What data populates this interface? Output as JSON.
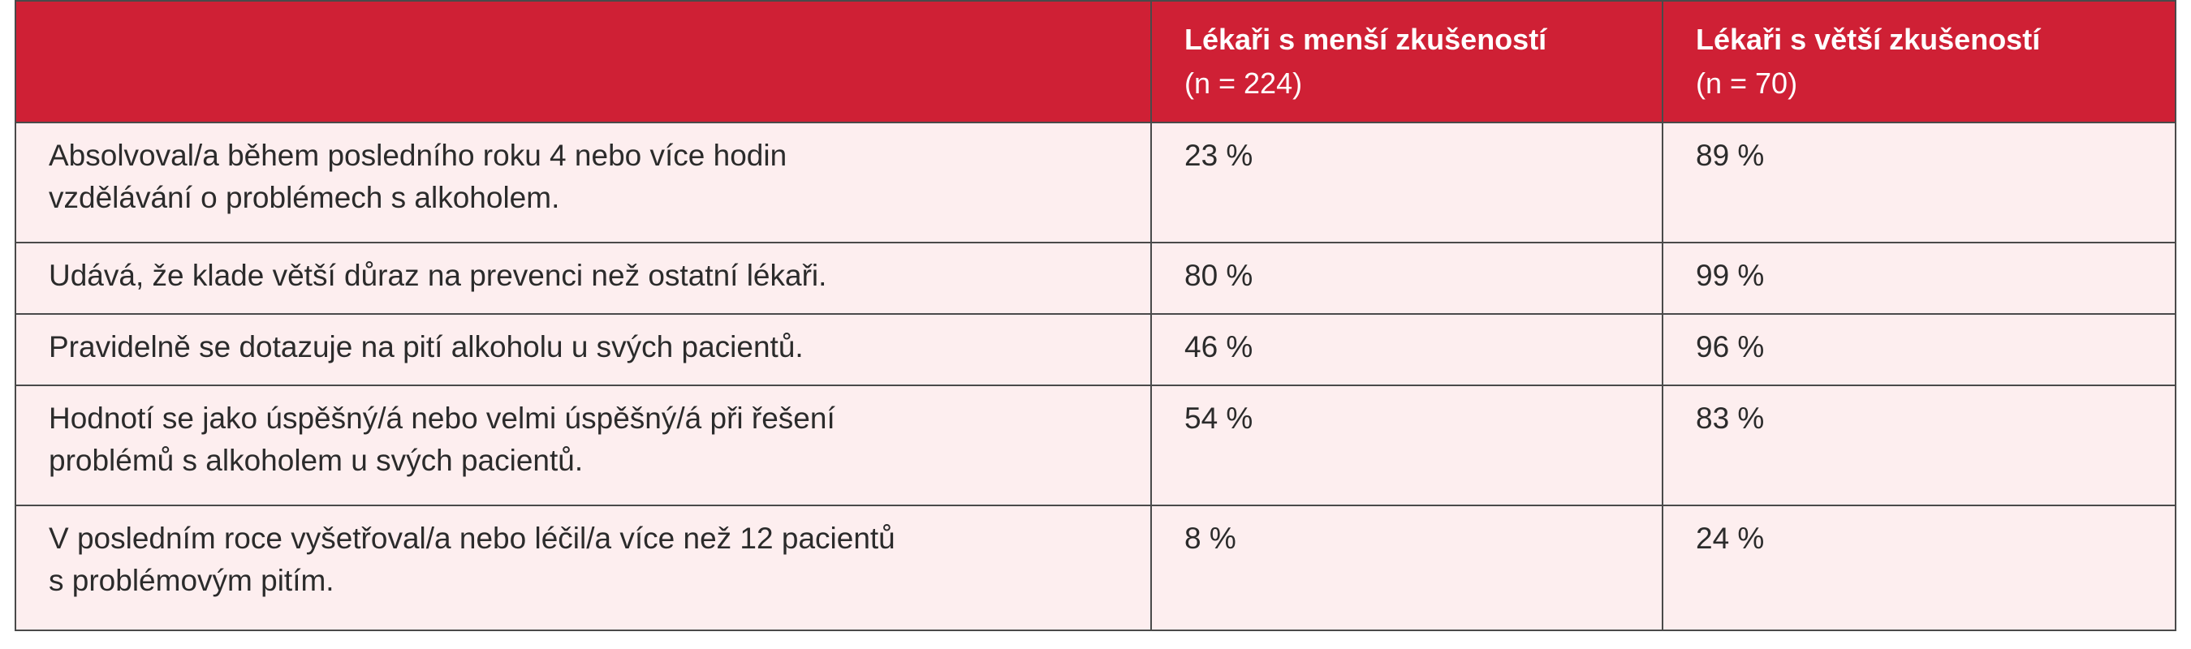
{
  "header": {
    "col1": "",
    "col2_title": "Lékaři s menší zkušeností",
    "col2_sub": "(n = 224)",
    "col3_title": "Lékaři s větší zkušeností",
    "col3_sub": "(n = 70)"
  },
  "rows": [
    {
      "label_lines": [
        "Absolvoval/a během posledního roku 4 nebo více hodin",
        "vzdělávání o problémech s alkoholem."
      ],
      "less": "23 %",
      "more": "89 %"
    },
    {
      "label_lines": [
        "Udává, že klade větší důraz na prevenci než ostatní lékaři."
      ],
      "less": "80 %",
      "more": "99 %"
    },
    {
      "label_lines": [
        "Pravidelně se dotazuje na pití alkoholu u svých pacientů."
      ],
      "less": "46 %",
      "more": "96 %"
    },
    {
      "label_lines": [
        "Hodnotí se jako úspěšný/á nebo velmi úspěšný/á při řešení",
        "problémů s alkoholem u svých pacientů."
      ],
      "less": "54 %",
      "more": "83 %"
    },
    {
      "label_lines": [
        "V posledním roce vyšetřoval/a nebo léčil/a více než 12 pacientů",
        "s problémovým pitím."
      ],
      "less": "8 %",
      "more": "24 %"
    }
  ],
  "colors": {
    "header_bg": "#cf2035",
    "row_bg": "#fdeeef",
    "border": "#4a4a4a"
  }
}
